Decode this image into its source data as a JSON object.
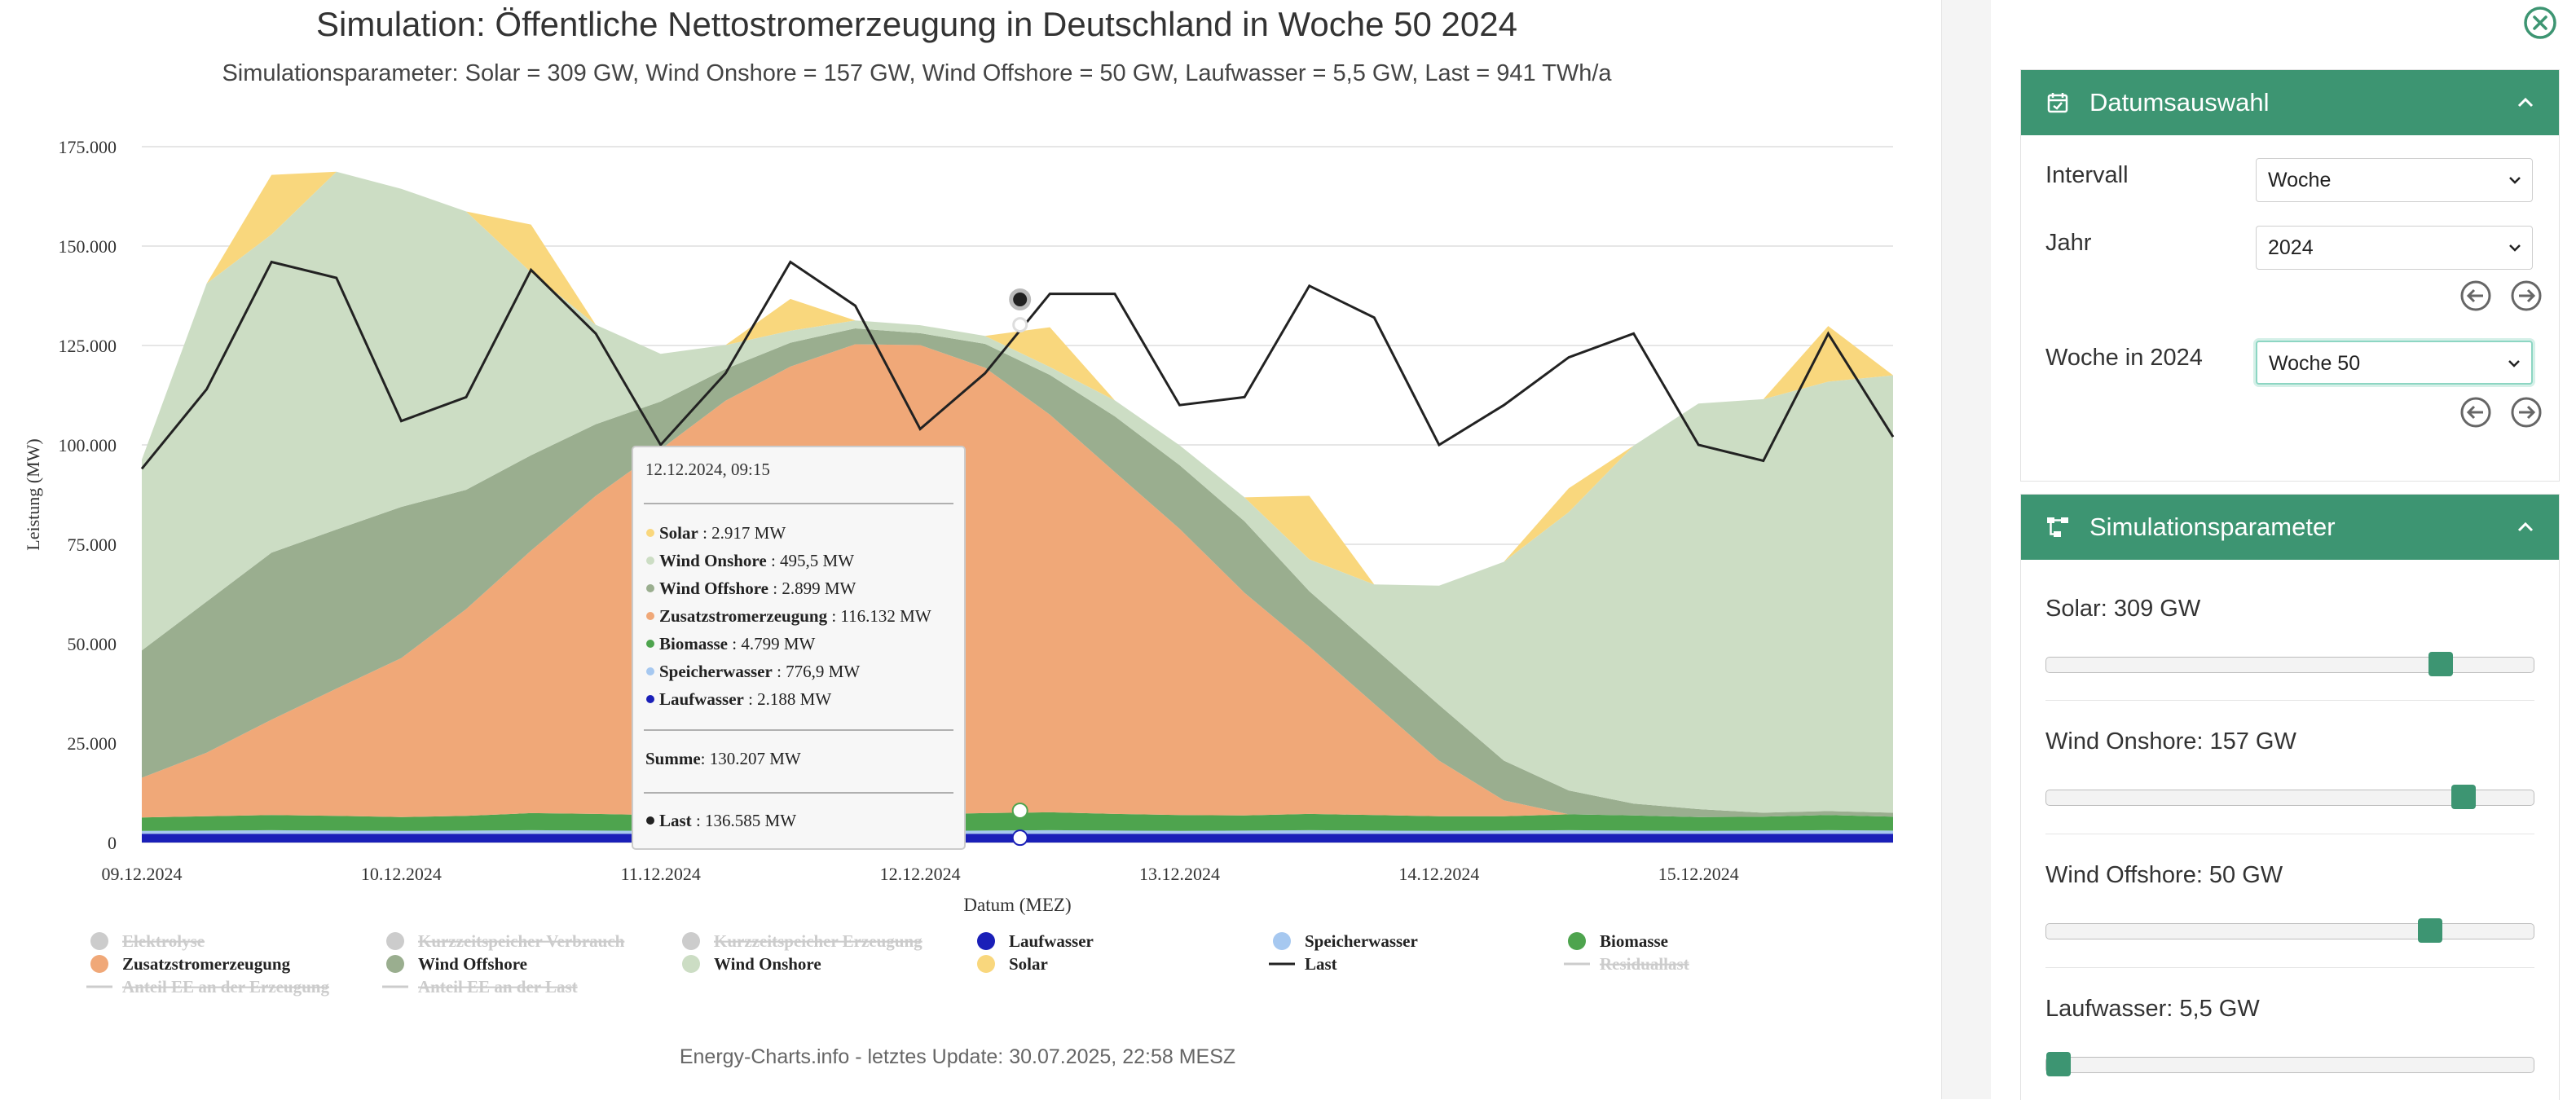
{
  "chart": {
    "title": "Simulation: Öffentliche Nettostromerzeugung in Deutschland in Woche 50 2024",
    "subtitle": "Simulationsparameter: Solar = 309 GW, Wind Onshore = 157 GW, Wind Offshore = 50 GW, Laufwasser = 5,5 GW, Last = 941 TWh/a",
    "footer": "Energy-Charts.info - letztes Update: 30.07.2025, 22:58 MESZ"
  },
  "chart_data": {
    "type": "area",
    "title": "Simulation: Öffentliche Nettostromerzeugung in Deutschland in Woche 50 2024",
    "xlabel": "Datum (MEZ)",
    "ylabel": "Leistung (MW)",
    "ylim": [
      0,
      175000
    ],
    "yticks": [
      "0",
      "25.000",
      "50.000",
      "75.000",
      "100.000",
      "125.000",
      "150.000",
      "175.000"
    ],
    "ytick_values": [
      0,
      25000,
      50000,
      75000,
      100000,
      125000,
      150000,
      175000
    ],
    "xticks": [
      "09.12.2024",
      "10.12.2024",
      "11.12.2024",
      "12.12.2024",
      "13.12.2024",
      "14.12.2024",
      "15.12.2024"
    ],
    "x_days": [
      0,
      0.25,
      0.5,
      0.75,
      1,
      1.25,
      1.5,
      1.75,
      2,
      2.25,
      2.5,
      2.75,
      3,
      3.25,
      3.5,
      3.75,
      4,
      4.25,
      4.5,
      4.75,
      5,
      5.25,
      5.5,
      5.75,
      6,
      6.25,
      6.5,
      6.75
    ],
    "grid": true,
    "stack_order": [
      "Laufwasser",
      "Speicherwasser",
      "Biomasse",
      "Zusatzstromerzeugung",
      "Wind Offshore",
      "Wind Onshore",
      "Solar"
    ],
    "series": [
      {
        "name": "Laufwasser",
        "color": "#1a1fb8",
        "values": [
          2200,
          2200,
          2200,
          2200,
          2200,
          2200,
          2200,
          2200,
          2200,
          2200,
          2200,
          2200,
          2200,
          2200,
          2200,
          2200,
          2200,
          2200,
          2200,
          2200,
          2200,
          2200,
          2200,
          2200,
          2200,
          2200,
          2200,
          2200
        ]
      },
      {
        "name": "Speicherwasser",
        "color": "#a6c8f0",
        "values": [
          700,
          800,
          900,
          800,
          700,
          800,
          900,
          800,
          700,
          800,
          900,
          800,
          700,
          800,
          900,
          800,
          700,
          800,
          900,
          800,
          700,
          800,
          900,
          800,
          700,
          800,
          900,
          800
        ]
      },
      {
        "name": "Biomasse",
        "color": "#4ea44e",
        "values": [
          3400,
          3600,
          3800,
          3700,
          3500,
          3700,
          4300,
          4200,
          4000,
          4100,
          4600,
          4300,
          4200,
          4400,
          4500,
          4200,
          4000,
          3800,
          4100,
          3900,
          3700,
          3600,
          4000,
          3800,
          3500,
          3500,
          3800,
          3500
        ]
      },
      {
        "name": "Zusatzstromerzeugung",
        "color": "#f0a878",
        "values": [
          10000,
          16000,
          24000,
          32000,
          40000,
          52000,
          66000,
          80000,
          92000,
          104000,
          112000,
          118000,
          118000,
          112000,
          100000,
          86000,
          72000,
          56000,
          42000,
          28000,
          14000,
          4000,
          0,
          0,
          0,
          0,
          0,
          0
        ]
      },
      {
        "name": "Wind Offshore",
        "color": "#9aae8f",
        "values": [
          32000,
          38000,
          42000,
          40000,
          38000,
          30000,
          24000,
          18000,
          12000,
          8000,
          6000,
          4000,
          3000,
          6000,
          10000,
          14000,
          16000,
          18000,
          14000,
          14000,
          14000,
          10000,
          6000,
          3000,
          2000,
          1000,
          1000,
          1000
        ]
      },
      {
        "name": "Wind Onshore",
        "color": "#ccddc4",
        "values": [
          48000,
          80000,
          80000,
          90000,
          80000,
          70000,
          46000,
          25000,
          12000,
          6000,
          3000,
          2000,
          2000,
          2000,
          2000,
          4000,
          5000,
          6000,
          8000,
          16000,
          30000,
          50000,
          70000,
          90000,
          102000,
          104000,
          108000,
          110000
        ]
      },
      {
        "name": "Solar",
        "color": "#f9d77d",
        "values": [
          0,
          0,
          15000,
          0,
          0,
          0,
          12000,
          0,
          0,
          0,
          8000,
          0,
          0,
          0,
          10000,
          0,
          0,
          0,
          16000,
          0,
          0,
          0,
          6000,
          0,
          0,
          0,
          14000,
          0
        ]
      },
      {
        "name": "Last",
        "color": "#222222",
        "type": "line",
        "values": [
          94000,
          114000,
          146000,
          142000,
          106000,
          112000,
          144000,
          128000,
          100000,
          118000,
          146000,
          135000,
          104000,
          118000,
          138000,
          138000,
          110000,
          112000,
          140000,
          132000,
          100000,
          110000,
          122000,
          128000,
          100000,
          96000,
          128000,
          102000
        ]
      }
    ],
    "tooltip": {
      "header": "12.12.2024, 09:15",
      "rows": [
        {
          "name": "Solar",
          "value": "2.917 MW",
          "color": "#f9d77d"
        },
        {
          "name": "Wind Onshore",
          "value": "495,5 MW",
          "color": "#ccddc4"
        },
        {
          "name": "Wind Offshore",
          "value": "2.899 MW",
          "color": "#9aae8f"
        },
        {
          "name": "Zusatzstromerzeugung",
          "value": "116.132 MW",
          "color": "#f0a878"
        },
        {
          "name": "Biomasse",
          "value": "4.799 MW",
          "color": "#4ea44e"
        },
        {
          "name": "Speicherwasser",
          "value": "776,9 MW",
          "color": "#a6c8f0"
        },
        {
          "name": "Laufwasser",
          "value": "2.188 MW",
          "color": "#1a1fb8"
        }
      ],
      "sum": {
        "name": "Summe",
        "value": "130.207 MW"
      },
      "load": {
        "name": "Last",
        "value": "136.585 MW"
      }
    },
    "legend": [
      [
        {
          "name": "Elektrolyse",
          "color": "#cccccc",
          "shape": "dot",
          "hidden": true
        },
        {
          "name": "Kurzzeitspeicher Verbrauch",
          "color": "#cccccc",
          "shape": "dot",
          "hidden": true
        },
        {
          "name": "Kurzzeitspeicher Erzeugung",
          "color": "#cccccc",
          "shape": "dot",
          "hidden": true
        },
        {
          "name": "Laufwasser",
          "color": "#1a1fb8",
          "shape": "dot",
          "hidden": false
        },
        {
          "name": "Speicherwasser",
          "color": "#a6c8f0",
          "shape": "dot",
          "hidden": false
        },
        {
          "name": "Biomasse",
          "color": "#4ea44e",
          "shape": "dot",
          "hidden": false
        }
      ],
      [
        {
          "name": "Zusatzstromerzeugung",
          "color": "#f0a878",
          "shape": "dot",
          "hidden": false
        },
        {
          "name": "Wind Offshore",
          "color": "#9aae8f",
          "shape": "dot",
          "hidden": false
        },
        {
          "name": "Wind Onshore",
          "color": "#ccddc4",
          "shape": "dot",
          "hidden": false
        },
        {
          "name": "Solar",
          "color": "#f9d77d",
          "shape": "dot",
          "hidden": false
        },
        {
          "name": "Last",
          "color": "#222222",
          "shape": "line",
          "hidden": false
        },
        {
          "name": "Residuallast",
          "color": "#cccccc",
          "shape": "line",
          "hidden": true
        }
      ],
      [
        {
          "name": "Anteil EE an der Erzeugung",
          "color": "#cccccc",
          "shape": "line",
          "hidden": true
        },
        {
          "name": "Anteil EE an der Last",
          "color": "#cccccc",
          "shape": "line",
          "hidden": true
        }
      ]
    ]
  },
  "sidebar": {
    "close_icon": "close-circle-icon",
    "date_panel": {
      "title": "Datumsauswahl",
      "icon": "calendar-check-icon",
      "interval_label": "Intervall",
      "interval_value": "Woche",
      "year_label": "Jahr",
      "year_value": "2024",
      "week_label": "Woche in 2024",
      "week_value": "Woche 50"
    },
    "sim_panel": {
      "title": "Simulationsparameter",
      "icon": "flow-icon",
      "sliders": [
        {
          "label": "Solar: 309 GW",
          "fraction": 0.826
        },
        {
          "label": "Wind Onshore: 157 GW",
          "fraction": 0.875
        },
        {
          "label": "Wind Offshore: 50 GW",
          "fraction": 0.803
        },
        {
          "label": "Laufwasser: 5,5 GW",
          "fraction": 0.0
        }
      ]
    },
    "accent_color": "#3d9572"
  }
}
